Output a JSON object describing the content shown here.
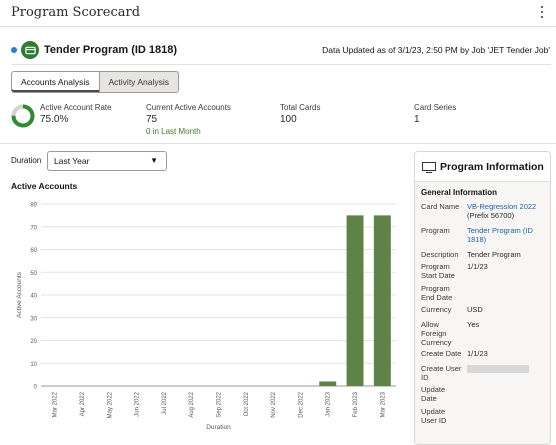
{
  "page": {
    "title": "Program Scorecard"
  },
  "program": {
    "name": "Tender Program (ID 1818)",
    "data_updated": "Data Updated as of 3/1/23, 2:50 PM by Job 'JET Tender Job'"
  },
  "tabs": [
    {
      "label": "Accounts Analysis",
      "active": true
    },
    {
      "label": "Activity Analysis",
      "active": false
    }
  ],
  "metrics": {
    "active_account_rate": {
      "label": "Active Account Rate",
      "value": "75.0%",
      "fraction": 0.75
    },
    "current_active_accounts": {
      "label": "Current Active Accounts",
      "value": "75",
      "sub": "0 in Last Month"
    },
    "total_cards": {
      "label": "Total Cards",
      "value": "100"
    },
    "card_series": {
      "label": "Card Series",
      "value": "1"
    }
  },
  "duration": {
    "label": "Duration",
    "selected": "Last Year"
  },
  "chart_title": "Active Accounts",
  "chart_data": {
    "type": "bar",
    "categories": [
      "Mar 2022",
      "Apr 2022",
      "May 2022",
      "Jun 2022",
      "Jul 2022",
      "Aug 2022",
      "Sep 2022",
      "Oct 2022",
      "Nov 2022",
      "Dec 2022",
      "Jan 2023",
      "Feb 2023",
      "Mar 2023"
    ],
    "values": [
      0,
      0,
      0,
      0,
      0,
      0,
      0,
      0,
      0,
      0,
      2,
      75,
      75
    ],
    "xlabel": "Duration",
    "ylabel": "Active Accounts",
    "ylim": [
      0,
      80
    ],
    "yticks": [
      0,
      10,
      20,
      30,
      40,
      50,
      60,
      70,
      80
    ],
    "color": "#5f8347",
    "grid": true
  },
  "info": {
    "title": "Program Information",
    "section": "General Information",
    "rows": [
      {
        "key": "Card Name",
        "value": "VB-Regression 2022",
        "sub": "(Prefix 56700)",
        "link": true
      },
      {
        "key": "Program",
        "value": "Tender Program (ID 1818)",
        "link": true
      },
      {
        "key": "Description",
        "value": "Tender Program"
      },
      {
        "key": "Program Start Date",
        "value": "1/1/23"
      },
      {
        "key": "Program End Date",
        "value": ""
      },
      {
        "key": "Currency",
        "value": "USD"
      },
      {
        "key": "Allow Foreign Currency",
        "value": "Yes"
      },
      {
        "key": "Create Date",
        "value": "1/1/23"
      },
      {
        "key": "Create User ID",
        "value": ""
      },
      {
        "key": "Update Date",
        "value": ""
      },
      {
        "key": "Update User ID",
        "value": ""
      }
    ]
  }
}
